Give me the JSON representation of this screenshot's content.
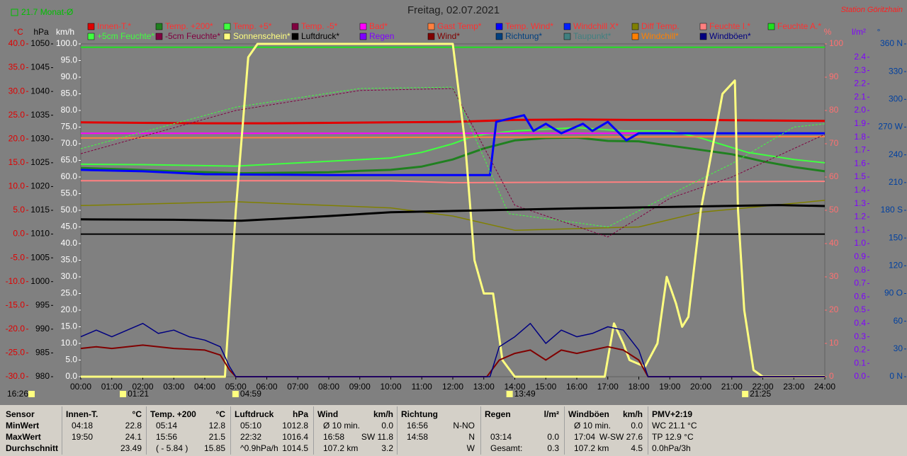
{
  "chart_data": {
    "type": "line",
    "title": "Freitag, 02.07.2021",
    "station": "Station Göritzhain",
    "monthly_average_label": "21.7 Monat-Ø",
    "xlim": [
      0,
      24
    ],
    "xticks": [
      {
        "value": 0,
        "label": "00:00"
      },
      {
        "value": 1,
        "label": "01:00"
      },
      {
        "value": 2,
        "label": "02:00"
      },
      {
        "value": 3,
        "label": "03:00"
      },
      {
        "value": 4,
        "label": "04:00"
      },
      {
        "value": 5,
        "label": "05:00"
      },
      {
        "value": 6,
        "label": "06:00"
      },
      {
        "value": 7,
        "label": "07:00"
      },
      {
        "value": 8,
        "label": "08:00"
      },
      {
        "value": 9,
        "label": "09:00"
      },
      {
        "value": 10,
        "label": "10:00"
      },
      {
        "value": 11,
        "label": "11:00"
      },
      {
        "value": 12,
        "label": "12:00"
      },
      {
        "value": 13,
        "label": "13:00"
      },
      {
        "value": 14,
        "label": "14:00"
      },
      {
        "value": 15,
        "label": "15:00"
      },
      {
        "value": 16,
        "label": "16:00"
      },
      {
        "value": 17,
        "label": "17:00"
      },
      {
        "value": 18,
        "label": "18:00"
      },
      {
        "value": 19,
        "label": "19:00"
      },
      {
        "value": 20,
        "label": "20:00"
      },
      {
        "value": 21,
        "label": "21:00"
      },
      {
        "value": 22,
        "label": "22:00"
      },
      {
        "value": 23,
        "label": "23:00"
      },
      {
        "value": 24,
        "label": "24:00"
      }
    ],
    "axes": [
      {
        "unit": "°C",
        "color": "#e00000",
        "ylim": [
          -30,
          40
        ],
        "yticks": [
          {
            "value": 40,
            "label": "40.0"
          },
          {
            "value": 35,
            "label": "35.0"
          },
          {
            "value": 30,
            "label": "30.0"
          },
          {
            "value": 25,
            "label": "25.0"
          },
          {
            "value": 20,
            "label": "20.0"
          },
          {
            "value": 15,
            "label": "15.0"
          },
          {
            "value": 10,
            "label": "10.0"
          },
          {
            "value": 5,
            "label": "5.0"
          },
          {
            "value": 0,
            "label": "0.0"
          },
          {
            "value": -5,
            "label": "-5.0"
          },
          {
            "value": -10,
            "label": "-10.0"
          },
          {
            "value": -15,
            "label": "-15.0"
          },
          {
            "value": -20,
            "label": "-20.0"
          },
          {
            "value": -25,
            "label": "-25.0"
          },
          {
            "value": -30,
            "label": "-30.0"
          }
        ]
      },
      {
        "unit": "hPa",
        "color": "#000000",
        "ylim": [
          980,
          1050
        ],
        "yticks": [
          1050,
          1045,
          1040,
          1035,
          1030,
          1025,
          1020,
          1015,
          1010,
          1005,
          1000,
          995,
          990,
          985,
          980
        ]
      },
      {
        "unit": "km/h",
        "color": "#ffffff",
        "ylim": [
          0,
          100
        ],
        "yticks": [
          {
            "value": 100,
            "label": "100.0"
          },
          {
            "value": 95,
            "label": "95.0"
          },
          {
            "value": 90,
            "label": "90.0"
          },
          {
            "value": 85,
            "label": "85.0"
          },
          {
            "value": 80,
            "label": "80.0"
          },
          {
            "value": 75,
            "label": "75.0"
          },
          {
            "value": 70,
            "label": "70.0"
          },
          {
            "value": 65,
            "label": "65.0"
          },
          {
            "value": 60,
            "label": "60.0"
          },
          {
            "value": 55,
            "label": "55.0"
          },
          {
            "value": 50,
            "label": "50.0"
          },
          {
            "value": 45,
            "label": "45.0"
          },
          {
            "value": 40,
            "label": "40.0"
          },
          {
            "value": 35,
            "label": "35.0"
          },
          {
            "value": 30,
            "label": "30.0"
          },
          {
            "value": 25,
            "label": "25.0"
          },
          {
            "value": 20,
            "label": "20.0"
          },
          {
            "value": 15,
            "label": "15.0"
          },
          {
            "value": 10,
            "label": "10.0"
          },
          {
            "value": 5,
            "label": "5.0"
          },
          {
            "value": 0,
            "label": "0.0"
          }
        ]
      },
      {
        "unit": "%",
        "color": "#ff7070",
        "ylim": [
          0,
          100
        ],
        "yticks": [
          100,
          90,
          80,
          70,
          60,
          50,
          40,
          30,
          20,
          10,
          0
        ]
      },
      {
        "unit": "l/m²",
        "color": "#8000ff",
        "ylim": [
          0,
          2.5
        ],
        "yticks": [
          2.4,
          2.3,
          2.2,
          2.1,
          {
            "value": 2,
            "label": "2.0"
          },
          1.9,
          1.8,
          1.7,
          1.6,
          1.5,
          1.4,
          1.3,
          1.2,
          1.1,
          {
            "value": 1,
            "label": "1.0"
          },
          0.9,
          0.8,
          0.7,
          0.6,
          0.5,
          0.4,
          0.3,
          0.2,
          0.1,
          {
            "value": 0,
            "label": "0.0"
          }
        ]
      },
      {
        "unit": "°",
        "color": "#0040a0",
        "ylim": [
          0,
          360
        ],
        "yticks": [
          {
            "value": 360,
            "label": "360 N"
          },
          330,
          300,
          {
            "value": 270,
            "label": "270 W"
          },
          240,
          210,
          {
            "value": 180,
            "label": "180 S"
          },
          150,
          120,
          {
            "value": 90,
            "label": "90 O"
          },
          60,
          30,
          {
            "value": 0,
            "label": "0 N"
          }
        ]
      }
    ],
    "series": [
      {
        "name": "Innen-T.*",
        "color": "#e00000",
        "axis": 0,
        "width": 3,
        "x": [
          0,
          2,
          4,
          6,
          8,
          10,
          12,
          13,
          14,
          16,
          18,
          20,
          22,
          24
        ],
        "values": [
          23.5,
          23.4,
          23.3,
          23.3,
          23.4,
          23.5,
          23.6,
          23.8,
          24.0,
          24.1,
          24.0,
          24.0,
          23.9,
          23.8
        ]
      },
      {
        "name": "Temp. +200*",
        "color": "#208020",
        "axis": 0,
        "width": 3,
        "x": [
          0,
          1.5,
          3,
          5.23,
          6.5,
          8,
          9,
          10,
          11,
          12,
          13,
          14,
          15,
          16,
          17,
          18,
          19,
          20,
          21,
          22,
          23,
          24
        ],
        "values": [
          13.9,
          13.6,
          13.2,
          12.8,
          12.9,
          13.0,
          13.3,
          13.5,
          14.2,
          15.7,
          18.0,
          19.7,
          20.2,
          20.3,
          19.6,
          19.5,
          18.6,
          17.7,
          16.8,
          15.3,
          14.1,
          13.2
        ]
      },
      {
        "name": "Temp. +5*",
        "color": "#40ff40",
        "axis": 0,
        "width": 2,
        "x": [
          0,
          2,
          5,
          8,
          10,
          11,
          12,
          12.5,
          13,
          14,
          16,
          17.5,
          19,
          20,
          21.5,
          23,
          24
        ],
        "values": [
          14.7,
          14.6,
          14.3,
          15.3,
          16.0,
          17.2,
          19.0,
          20.2,
          21.0,
          21.7,
          22.4,
          21.7,
          21.7,
          20.2,
          17.2,
          15.7,
          15.0
        ]
      },
      {
        "name": "Temp. -5*",
        "color": "#800040"
      },
      {
        "name": "Bad*",
        "color": "#ff00ff",
        "axis": 0,
        "width": 2,
        "x": [
          0,
          24
        ],
        "values": [
          21.2,
          21.2
        ]
      },
      {
        "name": "Gast Temp*",
        "color": "#ff8040",
        "axis": 0,
        "width": 2,
        "x": [
          0,
          24
        ],
        "values": [
          20.2,
          20.5
        ]
      },
      {
        "name": "Temp. Wind*",
        "color": "#0000ff",
        "axis": 0,
        "width": 3,
        "x": [
          0,
          2,
          4,
          8,
          13.2,
          13.4,
          14.3,
          14.6,
          15,
          15.5,
          16.2,
          16.5,
          17,
          17.6,
          18,
          24
        ],
        "values": [
          13.5,
          13.2,
          12.6,
          12.4,
          12.4,
          23.6,
          25.0,
          21.7,
          23.2,
          21.2,
          23.2,
          21.7,
          23.6,
          19.7,
          21.2,
          21.2
        ]
      },
      {
        "name": "Windchill X*",
        "color": "#0020ff"
      },
      {
        "name": "Diff Temp.",
        "color": "#808000",
        "axis": 0,
        "width": 1.5,
        "x": [
          0,
          5,
          10,
          12,
          14,
          18,
          20,
          24
        ],
        "values": [
          6.0,
          6.8,
          5.5,
          3.8,
          0.8,
          1.5,
          4.6,
          7.1
        ]
      },
      {
        "name": "Feuchte I.*",
        "color": "#ff8080",
        "axis": 3,
        "width": 2,
        "x": [
          0,
          10,
          12,
          24
        ],
        "values": [
          58.9,
          58.9,
          58.3,
          58.7
        ]
      },
      {
        "name": "Feuchte A.*",
        "color": "#20e020",
        "axis": 3,
        "width": 2,
        "x": [
          0,
          24
        ],
        "values": [
          99,
          99
        ]
      },
      {
        "name": "+5cm Feuchte*",
        "color": "#40ff40",
        "axis": 3,
        "width": 1,
        "dash": true,
        "x": [
          0,
          5,
          9,
          12,
          13.8,
          17,
          19,
          21,
          23,
          24
        ],
        "values": [
          68.5,
          81,
          86.6,
          87,
          49,
          45,
          54.7,
          64,
          75,
          76
        ]
      },
      {
        "name": "-5cm Feuchte*",
        "color": "#800040",
        "axis": 3,
        "width": 1,
        "dash": true,
        "x": [
          0,
          5,
          9,
          12,
          14,
          17,
          19,
          21,
          24
        ],
        "values": [
          67,
          80,
          86,
          86.6,
          51.5,
          42,
          53.6,
          60,
          72.8
        ]
      },
      {
        "name": "Sonnenschein*",
        "color": "#ffff80",
        "axis": 3,
        "width": 3,
        "x": [
          0,
          4.65,
          5.0,
          5.4,
          5.7,
          12.0,
          12.4,
          12.7,
          13.0,
          13.3,
          13.6,
          14.0,
          16.9,
          17.2,
          17.5,
          17.7,
          18.2,
          18.6,
          18.9,
          19.2,
          19.4,
          19.6,
          20.0,
          20.4,
          20.7,
          21.1,
          21.2,
          21.4,
          21.7,
          22.0,
          24
        ],
        "values": [
          0,
          0,
          50,
          96,
          100,
          100,
          70,
          35,
          25,
          25,
          5,
          0,
          0,
          16,
          10,
          5,
          3,
          10,
          30,
          22,
          15,
          18,
          50,
          70,
          85,
          89,
          50,
          20,
          2,
          0,
          0
        ]
      },
      {
        "name": "Luftdruck*",
        "color": "#000000",
        "axis": 1,
        "width": 3,
        "x": [
          0,
          3,
          5.17,
          8,
          10,
          13,
          16,
          19,
          22.5,
          24
        ],
        "values": [
          1013.1,
          1013.0,
          1012.8,
          1013.8,
          1014.6,
          1015.0,
          1015.4,
          1015.7,
          1016.1,
          1015.9
        ]
      },
      {
        "name": "Regen",
        "color": "#8000ff"
      },
      {
        "name": "Wind*",
        "color": "#800000",
        "axis": 2,
        "width": 2,
        "x": [
          0,
          0.5,
          1,
          2,
          3,
          4,
          4.5,
          4.8,
          5.0,
          13.1,
          13.5,
          14,
          14.5,
          15,
          15.5,
          16,
          16.5,
          17,
          17.5,
          18,
          18.3,
          24
        ],
        "values": [
          8.5,
          9,
          8.5,
          9.5,
          8.5,
          8,
          6.5,
          2,
          0,
          0,
          5,
          7,
          8,
          5,
          8,
          7,
          8,
          9,
          8,
          5,
          0,
          0
        ]
      },
      {
        "name": "Richtung*",
        "color": "#004080"
      },
      {
        "name": "Taupunkt*",
        "color": "#408080"
      },
      {
        "name": "Windchill*",
        "color": "#ff8000"
      },
      {
        "name": "Windböen*",
        "color": "#000080",
        "axis": 2,
        "width": 1.5,
        "x": [
          0,
          0.5,
          1,
          1.5,
          2,
          2.5,
          3,
          3.5,
          4,
          4.5,
          4.8,
          5.0,
          13.2,
          13.5,
          14,
          14.5,
          15,
          15.5,
          16,
          16.5,
          17,
          17.5,
          18,
          18.3,
          24
        ],
        "values": [
          12,
          14,
          12,
          14,
          16,
          13,
          14,
          12,
          11,
          9,
          3,
          0,
          0,
          9,
          12,
          16,
          10,
          14,
          12,
          13,
          15,
          14,
          8,
          0,
          0
        ]
      }
    ],
    "annotations": [
      {
        "label": "16:26"
      },
      {
        "x": 1.35,
        "label": "01:21"
      },
      {
        "x": 4.98,
        "label": "04:59"
      },
      {
        "x": 13.82,
        "label": "13:49"
      },
      {
        "x": 21.42,
        "label": "21:25"
      }
    ]
  },
  "summary": {
    "row_labels": [
      "Sensor",
      "MinWert",
      "MaxWert",
      "Durchschnitt"
    ],
    "columns": [
      {
        "title": "Innen-T.",
        "unit": "°C",
        "rows": [
          [
            "04:18",
            "22.8"
          ],
          [
            "19:50",
            "24.1"
          ],
          [
            null,
            "23.49"
          ]
        ]
      },
      {
        "title": "Temp. +200",
        "unit": "°C",
        "rows": [
          [
            "05:14",
            "12.8"
          ],
          [
            "15:56",
            "21.5"
          ],
          [
            "( - 5.84 )",
            "15.85"
          ]
        ]
      },
      {
        "title": "Luftdruck",
        "unit": "hPa",
        "rows": [
          [
            "05:10",
            "1012.8"
          ],
          [
            "22:32",
            "1016.4"
          ],
          [
            "^0.9hPa/h",
            "1014.5"
          ]
        ]
      },
      {
        "title": "Wind",
        "unit": "km/h",
        "rows": [
          [
            "Ø 10 min.",
            "0.0"
          ],
          [
            "16:58",
            "SW 11.8"
          ],
          [
            "107.2 km",
            "3.2"
          ]
        ]
      },
      {
        "title": "Richtung",
        "rows": [
          [
            "16:56",
            "N-NO"
          ],
          [
            "14:58",
            "N"
          ],
          [
            null,
            "W"
          ]
        ]
      },
      {
        "title": "Regen",
        "unit": "l/m²",
        "rows": [
          [
            null,
            null
          ],
          [
            "03:14",
            "0.0"
          ],
          [
            "Gesamt:",
            "0.3"
          ]
        ]
      },
      {
        "title": "Windböen",
        "unit": "km/h",
        "rows": [
          [
            "Ø 10 min.",
            "0.0"
          ],
          [
            "17:04",
            "W-SW 27.6"
          ],
          [
            "107.2 km",
            "4.5"
          ]
        ]
      },
      {
        "title": "PMV+2:19",
        "rows": [
          [
            "WC 21.1 °C"
          ],
          [
            "TP 12.9 °C"
          ],
          [
            "0.0hPa/3h"
          ]
        ]
      }
    ]
  }
}
